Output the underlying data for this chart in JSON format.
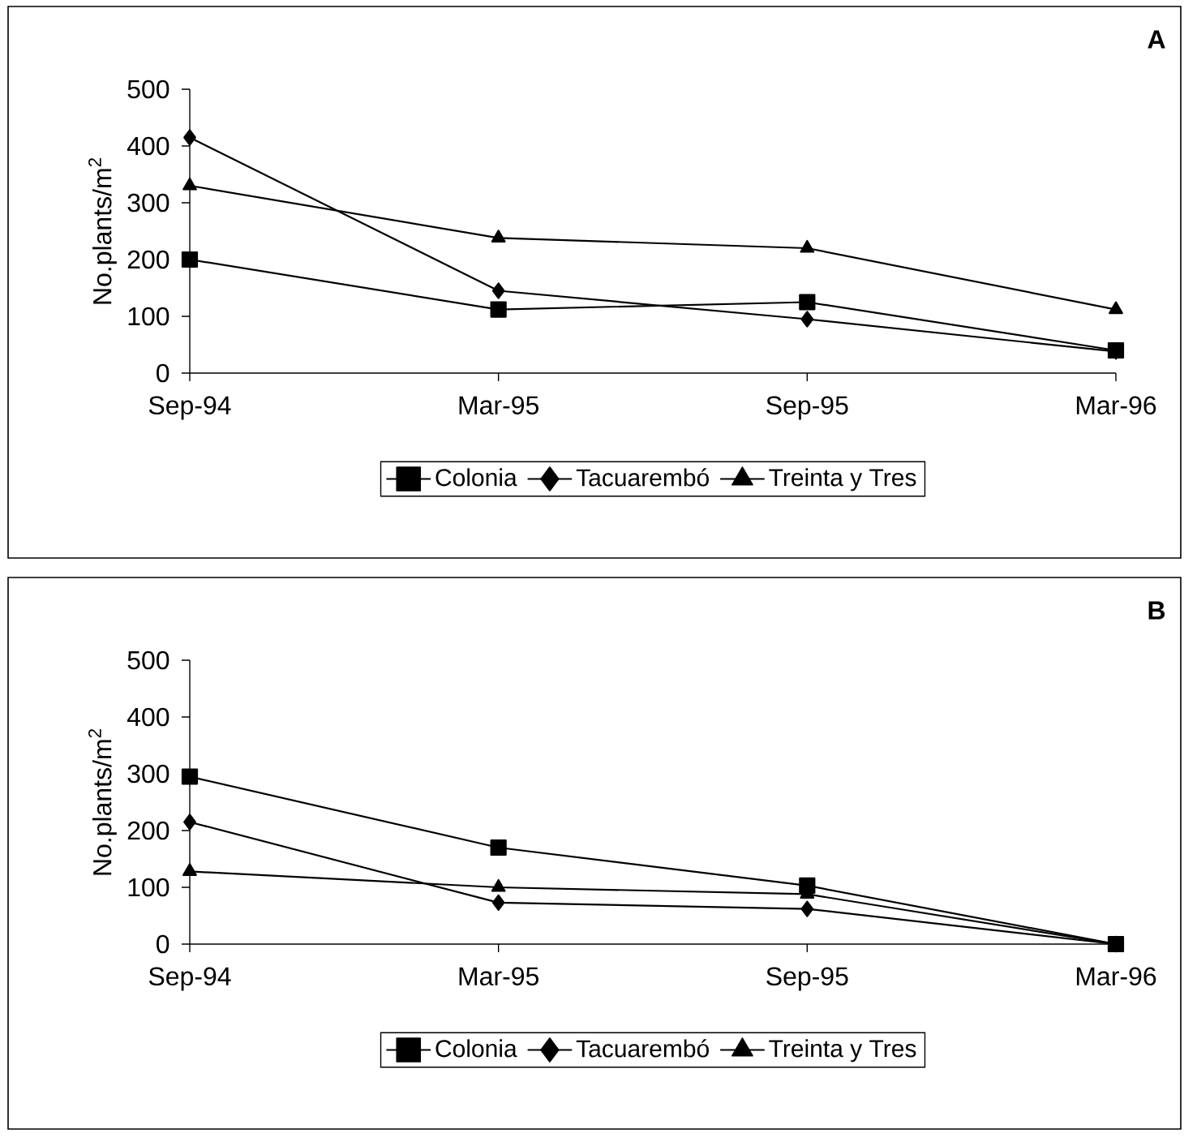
{
  "chart_data": [
    {
      "type": "line",
      "title": "A",
      "ylabel": "No.plants/m$^{2}$",
      "categories": [
        "Sep-94",
        "Mar-95",
        "Sep-95",
        "Mar-96"
      ],
      "ylim": [
        0,
        500
      ],
      "yticks": [
        0,
        100,
        200,
        300,
        400,
        500
      ],
      "legend": "bottom",
      "grid": false,
      "line_style": "solid",
      "series": [
        {
          "name": "Colonia",
          "color": "#000000",
          "marker": "square",
          "values": [
            200,
            112,
            125,
            40
          ]
        },
        {
          "name": "Tacuarembó",
          "color": "#000000",
          "marker": "diamond",
          "values": [
            415,
            145,
            95,
            38
          ]
        },
        {
          "name": "Treinta y Tres",
          "color": "#000000",
          "marker": "triangle",
          "values": [
            330,
            238,
            220,
            112
          ]
        }
      ]
    },
    {
      "type": "line",
      "title": "B",
      "ylabel": "No.plants/m$^{2}$",
      "categories": [
        "Sep-94",
        "Mar-95",
        "Sep-95",
        "Mar-96"
      ],
      "ylim": [
        0,
        500
      ],
      "yticks": [
        0,
        100,
        200,
        300,
        400,
        500
      ],
      "legend": "bottom",
      "grid": false,
      "line_style": "solid",
      "series": [
        {
          "name": "Colonia",
          "color": "#000000",
          "marker": "square",
          "values": [
            295,
            170,
            103,
            0
          ]
        },
        {
          "name": "Tacuarembó",
          "color": "#000000",
          "marker": "diamond",
          "values": [
            215,
            73,
            62,
            0
          ]
        },
        {
          "name": "Treinta y Tres",
          "color": "#000000",
          "marker": "triangle",
          "values": [
            128,
            100,
            88,
            0
          ]
        }
      ]
    }
  ]
}
